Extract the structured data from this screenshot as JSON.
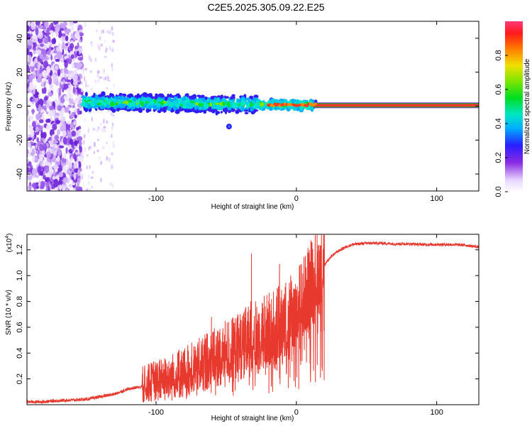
{
  "title": "C2E5.2025.305.09.22.E25",
  "chart_data": [
    {
      "type": "heatmap",
      "xlabel": "Height of straight line (km)",
      "ylabel": "Frequency (Hz)",
      "xlim": [
        -192,
        130
      ],
      "ylim": [
        -50,
        50
      ],
      "xticks": [
        -100,
        0,
        100
      ],
      "xtick_labels": [
        "-100",
        "0",
        "100"
      ],
      "yticks": [
        -40,
        -20,
        0,
        20,
        40
      ],
      "ytick_labels": [
        "-40",
        "-20",
        "0",
        "20",
        "40"
      ],
      "colorbar": {
        "label": "Normalized spectral amplitude",
        "range": [
          0,
          1
        ],
        "ticks": [
          0.0,
          0.2,
          0.4,
          0.6,
          0.8
        ],
        "tick_labels": [
          "0.0",
          "0.2",
          "0.4",
          "0.6",
          "0.8"
        ]
      },
      "features": {
        "noise_region_x": [
          -192,
          -153
        ],
        "faint_scatter_x": [
          -153,
          -130
        ],
        "signal_band_x": [
          -152,
          14
        ],
        "signal_center_freq": [
          2.5,
          0.5
        ],
        "steady_line_x": [
          12,
          130
        ],
        "steady_line_freq": 0.5
      }
    },
    {
      "type": "line",
      "xlabel": "Height of straight line (km)",
      "ylabel": "SNR (10 * v/v)",
      "scale_label": "(x10",
      "scale_exp": "4",
      "scale_close": ")",
      "xlim": [
        -192,
        130
      ],
      "ylim": [
        0,
        13200
      ],
      "xticks": [
        -100,
        0,
        100
      ],
      "xtick_labels": [
        "-100",
        "0",
        "100"
      ],
      "yticks": [
        2000,
        4000,
        6000,
        8000,
        10000,
        12000
      ],
      "ytick_labels": [
        "0.2",
        "0.4",
        "0.6",
        "0.8",
        "1.0",
        "1.2"
      ],
      "line_color": "#e8392f",
      "series": [
        {
          "name": "SNR",
          "x": [
            -192,
            -180,
            -170,
            -160,
            -150,
            -140,
            -130,
            -120,
            -110,
            -100,
            -90,
            -80,
            -70,
            -60,
            -50,
            -40,
            -30,
            -20,
            -15,
            -10,
            -5,
            0,
            5,
            10,
            15,
            20,
            25,
            30,
            35,
            40,
            50,
            60,
            70,
            80,
            90,
            100,
            110,
            120,
            130
          ],
          "values": [
            200,
            220,
            300,
            350,
            400,
            600,
            800,
            1200,
            1400,
            1700,
            2000,
            2300,
            2800,
            3300,
            3800,
            4300,
            4900,
            5500,
            5600,
            5900,
            6300,
            7000,
            7900,
            8900,
            9900,
            10800,
            11500,
            11900,
            12200,
            12400,
            12500,
            12500,
            12450,
            12450,
            12400,
            12400,
            12400,
            12350,
            12200
          ],
          "spikes": [
            {
              "x": -88.5,
              "y": 3000
            },
            {
              "x": -60.5,
              "y": 6800
            },
            {
              "x": -55,
              "y": 5600
            },
            {
              "x": -43.5,
              "y": 6400
            },
            {
              "x": -32.5,
              "y": 8000
            },
            {
              "x": -32,
              "y": 11700
            },
            {
              "x": -30,
              "y": 6600
            },
            {
              "x": -21,
              "y": 8500
            },
            {
              "x": -12,
              "y": 10900
            },
            {
              "x": -8,
              "y": 9100
            },
            {
              "x": 8,
              "y": 11800
            },
            {
              "x": 12,
              "y": 11000
            }
          ]
        }
      ]
    }
  ]
}
